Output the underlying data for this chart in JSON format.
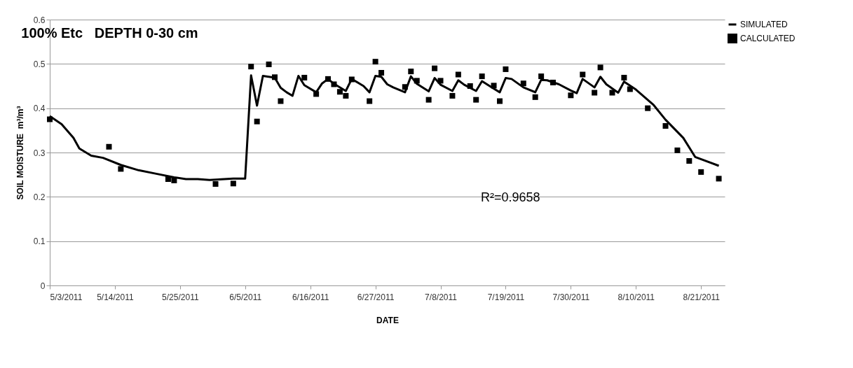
{
  "chart_data": {
    "type": "line",
    "title": "100% Etc   DEPTH 0-30 cm",
    "xlabel": "DATE",
    "ylabel": "SOIL MOISTURE  m³/m³",
    "annotations": [
      "R²=0.9658"
    ],
    "xlim": [
      "2011-05-03",
      "2011-08-25"
    ],
    "xticks": [
      {
        "value": "2011-05-03",
        "label": "5/3/2011"
      },
      {
        "value": "2011-05-14",
        "label": "5/14/2011"
      },
      {
        "value": "2011-05-25",
        "label": "5/25/2011"
      },
      {
        "value": "2011-06-05",
        "label": "6/5/2011"
      },
      {
        "value": "2011-06-16",
        "label": "6/16/2011"
      },
      {
        "value": "2011-06-27",
        "label": "6/27/2011"
      },
      {
        "value": "2011-07-08",
        "label": "7/8/2011"
      },
      {
        "value": "2011-07-19",
        "label": "7/19/2011"
      },
      {
        "value": "2011-07-30",
        "label": "7/30/2011"
      },
      {
        "value": "2011-08-10",
        "label": "8/10/2011"
      },
      {
        "value": "2011-08-21",
        "label": "8/21/2011"
      }
    ],
    "ylim": [
      0,
      0.6
    ],
    "yticks": [
      0,
      0.1,
      0.2,
      0.3,
      0.4,
      0.5,
      0.6
    ],
    "grid": "y",
    "legend": "right",
    "series": [
      {
        "name": "SIMULATED",
        "color": "#000000",
        "marker": "none",
        "x": [
          "2011-05-03",
          "2011-05-05",
          "2011-05-07",
          "2011-05-08",
          "2011-05-10",
          "2011-05-12",
          "2011-05-15",
          "2011-05-18",
          "2011-05-21",
          "2011-05-24",
          "2011-05-26",
          "2011-05-28",
          "2011-05-30",
          "2011-06-03",
          "2011-06-05",
          "2011-06-06",
          "2011-06-07",
          "2011-06-08",
          "2011-06-10",
          "2011-06-11",
          "2011-06-12",
          "2011-06-13",
          "2011-06-14",
          "2011-06-15",
          "2011-06-17",
          "2011-06-18",
          "2011-06-19",
          "2011-06-20",
          "2011-06-22",
          "2011-06-23",
          "2011-06-25",
          "2011-06-26",
          "2011-06-27",
          "2011-06-28",
          "2011-06-29",
          "2011-06-30",
          "2011-07-02",
          "2011-07-03",
          "2011-07-04",
          "2011-07-06",
          "2011-07-07",
          "2011-07-08",
          "2011-07-10",
          "2011-07-11",
          "2011-07-12",
          "2011-07-14",
          "2011-07-15",
          "2011-07-17",
          "2011-07-18",
          "2011-07-19",
          "2011-07-20",
          "2011-07-22",
          "2011-07-24",
          "2011-07-25",
          "2011-07-26",
          "2011-07-28",
          "2011-07-30",
          "2011-07-31",
          "2011-08-01",
          "2011-08-03",
          "2011-08-04",
          "2011-08-05",
          "2011-08-07",
          "2011-08-08",
          "2011-08-10",
          "2011-08-13",
          "2011-08-15",
          "2011-08-18",
          "2011-08-20",
          "2011-08-24"
        ],
        "values": [
          0.382,
          0.364,
          0.333,
          0.309,
          0.293,
          0.288,
          0.272,
          0.26,
          0.252,
          0.244,
          0.24,
          0.24,
          0.238,
          0.241,
          0.241,
          0.474,
          0.406,
          0.473,
          0.469,
          0.446,
          0.436,
          0.428,
          0.473,
          0.452,
          0.436,
          0.456,
          0.466,
          0.455,
          0.439,
          0.466,
          0.45,
          0.436,
          0.473,
          0.471,
          0.454,
          0.447,
          0.436,
          0.472,
          0.455,
          0.438,
          0.468,
          0.453,
          0.439,
          0.463,
          0.453,
          0.439,
          0.461,
          0.444,
          0.436,
          0.468,
          0.466,
          0.447,
          0.436,
          0.464,
          0.463,
          0.454,
          0.44,
          0.434,
          0.466,
          0.447,
          0.471,
          0.454,
          0.435,
          0.46,
          0.442,
          0.407,
          0.374,
          0.333,
          0.29,
          0.27
        ]
      },
      {
        "name": "CALCULATED",
        "type": "scatter",
        "color": "#000000",
        "marker": "square",
        "x": [
          "2011-05-03",
          "2011-05-13",
          "2011-05-15",
          "2011-05-23",
          "2011-05-24",
          "2011-05-31",
          "2011-06-03",
          "2011-06-06",
          "2011-06-07",
          "2011-06-09",
          "2011-06-10",
          "2011-06-11",
          "2011-06-15",
          "2011-06-17",
          "2011-06-19",
          "2011-06-20",
          "2011-06-21",
          "2011-06-22",
          "2011-06-23",
          "2011-06-26",
          "2011-06-27",
          "2011-06-28",
          "2011-07-02",
          "2011-07-03",
          "2011-07-04",
          "2011-07-06",
          "2011-07-07",
          "2011-07-08",
          "2011-07-10",
          "2011-07-11",
          "2011-07-13",
          "2011-07-14",
          "2011-07-15",
          "2011-07-17",
          "2011-07-18",
          "2011-07-19",
          "2011-07-22",
          "2011-07-24",
          "2011-07-25",
          "2011-07-27",
          "2011-07-30",
          "2011-08-01",
          "2011-08-03",
          "2011-08-04",
          "2011-08-06",
          "2011-08-08",
          "2011-08-09",
          "2011-08-12",
          "2011-08-15",
          "2011-08-17",
          "2011-08-19",
          "2011-08-21",
          "2011-08-24"
        ],
        "values": [
          0.375,
          0.313,
          0.263,
          0.24,
          0.237,
          0.229,
          0.23,
          0.494,
          0.37,
          0.499,
          0.47,
          0.416,
          0.469,
          0.432,
          0.466,
          0.454,
          0.437,
          0.428,
          0.465,
          0.416,
          0.505,
          0.48,
          0.448,
          0.483,
          0.462,
          0.419,
          0.49,
          0.462,
          0.428,
          0.476,
          0.45,
          0.419,
          0.472,
          0.451,
          0.416,
          0.488,
          0.456,
          0.425,
          0.472,
          0.458,
          0.429,
          0.476,
          0.435,
          0.492,
          0.435,
          0.469,
          0.443,
          0.4,
          0.36,
          0.305,
          0.281,
          0.256,
          0.241
        ]
      }
    ]
  }
}
